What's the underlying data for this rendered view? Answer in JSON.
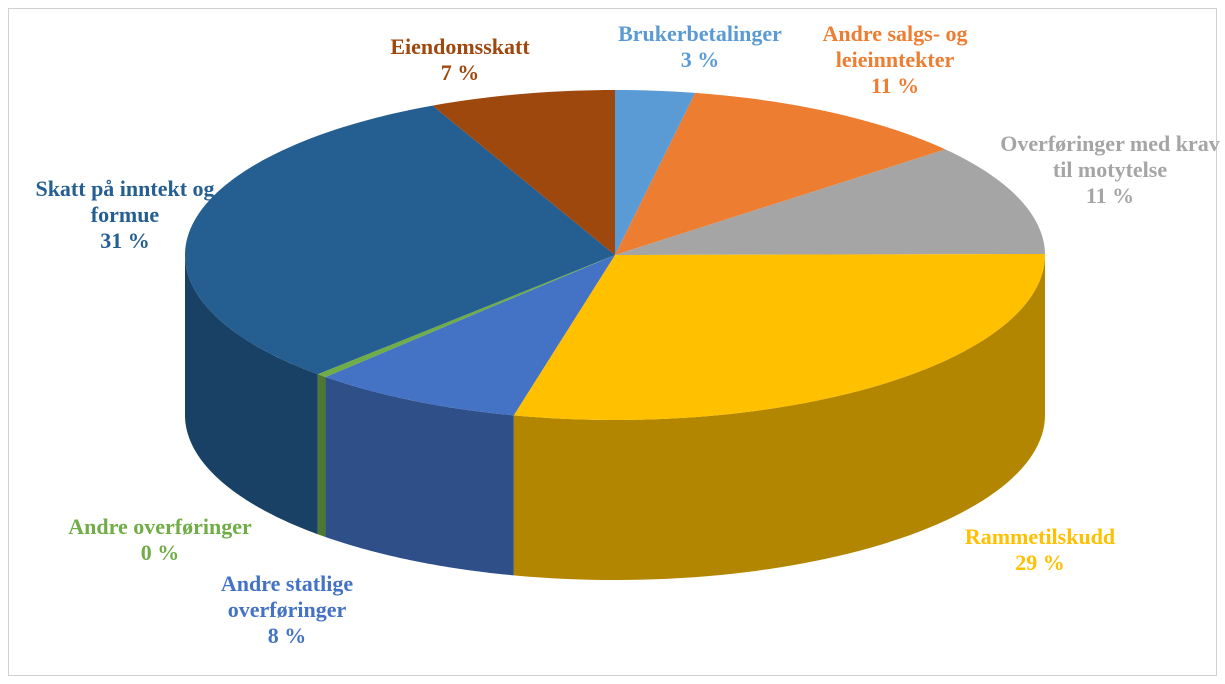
{
  "chart_data": {
    "type": "pie3d",
    "categories": [
      "Brukerbetalinger",
      "Andre salgs- og leieinntekter",
      "Overføringer med krav til motytelse",
      "Rammetilskudd",
      "Andre statlige overføringer",
      "Andre overføringer",
      "Skatt på inntekt og formue",
      "Eiendomsskatt"
    ],
    "values": [
      3,
      11,
      11,
      29,
      8,
      0.4,
      31,
      7
    ],
    "value_labels": [
      "3 %",
      "11 %",
      "11 %",
      "29 %",
      "8 %",
      "0 %",
      "31 %",
      "7 %"
    ],
    "colors": [
      "#5b9bd5",
      "#ed7d31",
      "#a5a5a5",
      "#ffc000",
      "#4472c4",
      "#70ad47",
      "#255e91",
      "#9e480e"
    ]
  }
}
